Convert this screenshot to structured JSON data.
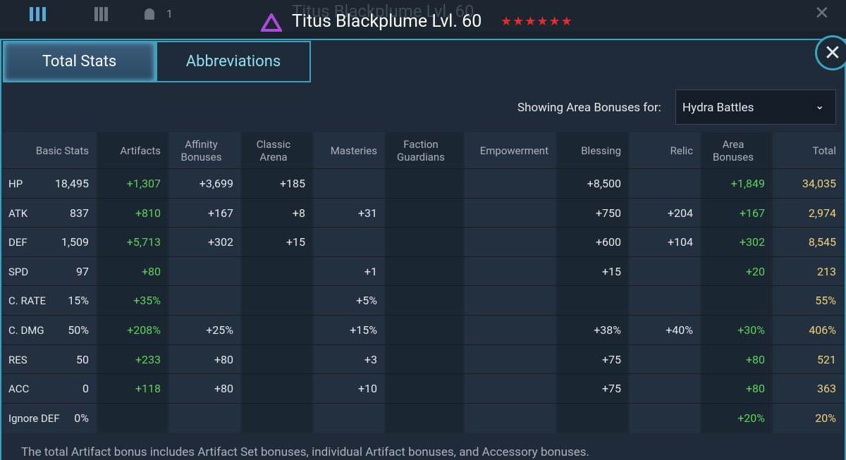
{
  "header": {
    "counter": "1",
    "title": "Titus Blackplume Lvl. 60"
  },
  "tabs": [
    "Total Stats",
    "Abbreviations"
  ],
  "area_label": "Showing Area Bonuses for:",
  "area_select": "Hydra Battles",
  "table": {
    "columns": [
      "Basic Stats",
      "Artifacts",
      "Affinity Bonuses",
      "Classic Arena",
      "Masteries",
      "Faction Guardians",
      "Empowerment",
      "Blessing",
      "Relic",
      "Area Bonuses",
      "Total"
    ],
    "rows": [
      [
        "HP",
        "18,495",
        "+1,307",
        "+3,699",
        "+185",
        null,
        null,
        null,
        "+8,500",
        null,
        "+1,849",
        "34,035"
      ],
      [
        "ATK",
        "837",
        "+810",
        "+167",
        "+8",
        "+31",
        null,
        null,
        "+750",
        "+204",
        "+167",
        "2,974"
      ],
      [
        "DEF",
        "1,509",
        "+5,713",
        "+302",
        "+15",
        null,
        null,
        null,
        "+600",
        "+104",
        "+302",
        "8,545"
      ],
      [
        "SPD",
        "97",
        "+80",
        null,
        null,
        "+1",
        null,
        null,
        "+15",
        null,
        "+20",
        "213"
      ],
      [
        "C. RATE",
        "15%",
        "+35%",
        null,
        null,
        "+5%",
        null,
        null,
        null,
        null,
        null,
        "55%"
      ],
      [
        "C. DMG",
        "50%",
        "+208%",
        "+25%",
        null,
        "+15%",
        null,
        null,
        "+38%",
        "+40%",
        "+30%",
        "406%"
      ],
      [
        "RES",
        "50",
        "+233",
        "+80",
        null,
        "+3",
        null,
        null,
        "+75",
        null,
        "+80",
        "521"
      ],
      [
        "ACC",
        "0",
        "+118",
        "+80",
        null,
        "+10",
        null,
        null,
        "+75",
        null,
        "+80",
        "363"
      ],
      [
        "Ignore DEF",
        "0%",
        null,
        null,
        null,
        null,
        null,
        null,
        null,
        null,
        "+20%",
        "20%"
      ]
    ]
  },
  "footnote": "The total Artifact bonus includes Artifact Set bonuses, individual Artifact bonuses, and Accessory bonuses."
}
